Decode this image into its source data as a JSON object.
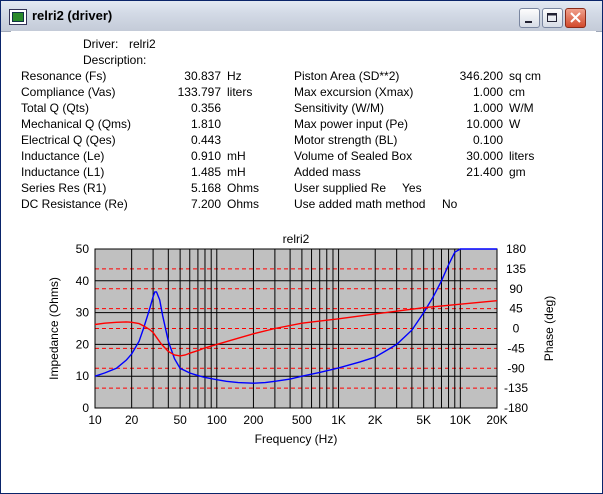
{
  "window": {
    "title": "relri2 (driver)"
  },
  "titlebar_buttons": [
    "minimize",
    "maximize",
    "close"
  ],
  "header": {
    "driver_label": "Driver:",
    "driver_value": "relri2",
    "description_label": "Description:"
  },
  "params_left": [
    {
      "label": "Resonance (Fs)",
      "value": "30.837",
      "unit": "Hz"
    },
    {
      "label": "Compliance (Vas)",
      "value": "133.797",
      "unit": "liters"
    },
    {
      "label": "Total Q (Qts)",
      "value": "0.356",
      "unit": ""
    },
    {
      "label": "Mechanical Q (Qms)",
      "value": "1.810",
      "unit": ""
    },
    {
      "label": "Electrical Q (Qes)",
      "value": "0.443",
      "unit": ""
    },
    {
      "label": "Inductance (Le)",
      "value": "0.910",
      "unit": "mH"
    },
    {
      "label": "Inductance (L1)",
      "value": "1.485",
      "unit": "mH"
    },
    {
      "label": "Series Res (R1)",
      "value": "5.168",
      "unit": "Ohms"
    },
    {
      "label": "DC Resistance (Re)",
      "value": "7.200",
      "unit": "Ohms"
    }
  ],
  "params_right": [
    {
      "label": "Piston Area (SD**2)",
      "value": "346.200",
      "unit": "sq cm"
    },
    {
      "label": "Max excursion (Xmax)",
      "value": "1.000",
      "unit": "cm"
    },
    {
      "label": "Sensitivity (W/M)",
      "value": "1.000",
      "unit": "W/M"
    },
    {
      "label": "Max power input (Pe)",
      "value": "10.000",
      "unit": "W"
    },
    {
      "label": "Motor strength (BL)",
      "value": "0.100",
      "unit": ""
    },
    {
      "label": "Volume of Sealed Box",
      "value": "30.000",
      "unit": "liters"
    },
    {
      "label": "Added mass",
      "value": "21.400",
      "unit": "gm"
    }
  ],
  "params_extra": [
    {
      "label": "User supplied Re",
      "value": "Yes"
    },
    {
      "label": "Use added math method",
      "value": "No"
    }
  ],
  "chart_data": {
    "type": "line",
    "title": "relri2",
    "xlabel": "Frequency (Hz)",
    "ylabel": "Impedance (Ohms)",
    "y2label": "Phase (deg)",
    "x_scale": "log",
    "xlim": [
      10,
      20000
    ],
    "ylim": [
      0,
      50
    ],
    "y2lim": [
      -180,
      180
    ],
    "x_ticks": [
      10,
      20,
      50,
      100,
      200,
      500,
      1000,
      2000,
      5000,
      10000,
      20000
    ],
    "x_tick_labels": [
      "10",
      "20",
      "50",
      "100",
      "200",
      "500",
      "1K",
      "2K",
      "5K",
      "10K",
      "20K"
    ],
    "y_ticks": [
      0,
      10,
      20,
      30,
      40,
      50
    ],
    "y2_ticks": [
      180,
      135,
      90,
      45,
      0,
      -45,
      -90,
      -135,
      -180
    ],
    "grid": true,
    "colors": {
      "plot_bg": "#c0c0c0",
      "impedance": "#0000ff",
      "phase": "#ff0000",
      "grid_phase": "#ff0000",
      "grid_major": "#000000"
    },
    "series": [
      {
        "name": "Impedance",
        "axis": "left",
        "x": [
          10,
          12,
          15,
          18,
          20,
          23,
          25,
          28,
          30,
          31,
          32,
          34,
          36,
          40,
          45,
          50,
          60,
          70,
          80,
          100,
          120,
          150,
          200,
          250,
          300,
          400,
          500,
          700,
          1000,
          1500,
          2000,
          3000,
          4000,
          5000,
          6000,
          7000,
          8000,
          9000,
          10000,
          15000,
          20000
        ],
        "y": [
          10,
          11,
          12.5,
          15,
          17,
          21,
          25,
          31,
          35,
          36.5,
          36.5,
          34,
          29,
          21,
          15.5,
          12.5,
          11,
          10.2,
          9.6,
          8.9,
          8.4,
          8,
          7.8,
          8,
          8.4,
          9.1,
          10,
          11.2,
          12.6,
          14.5,
          16,
          20,
          24.5,
          30,
          35,
          40,
          45,
          49,
          50,
          50,
          50
        ]
      },
      {
        "name": "Phase",
        "axis": "right",
        "x": [
          10,
          12,
          15,
          18,
          20,
          23,
          25,
          28,
          30,
          32,
          35,
          40,
          45,
          50,
          55,
          60,
          70,
          80,
          100,
          150,
          200,
          300,
          500,
          1000,
          2000,
          5000,
          10000,
          20000
        ],
        "y": [
          9,
          12,
          14,
          15,
          14,
          11,
          6,
          -2,
          -9,
          -20,
          -35,
          -52,
          -60,
          -62,
          -60,
          -56,
          -50,
          -44,
          -36,
          -22,
          -12,
          0,
          12,
          22,
          33,
          47,
          55,
          63
        ]
      }
    ]
  }
}
